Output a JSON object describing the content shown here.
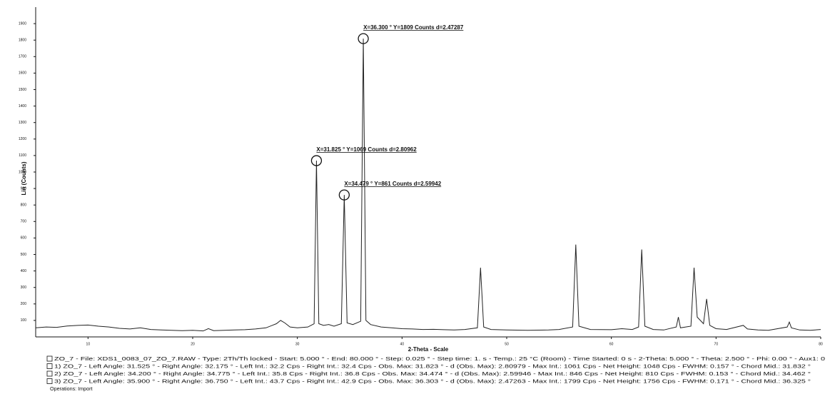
{
  "chart_data": {
    "type": "line",
    "x_label": "2-Theta - Scale",
    "y_label": "Lin (Counts)",
    "xlim": [
      5,
      80
    ],
    "ylim": [
      0,
      2000
    ],
    "xticks": [
      10,
      20,
      30,
      40,
      50,
      60,
      70,
      80
    ],
    "yticks": [
      100,
      200,
      300,
      400,
      500,
      600,
      700,
      800,
      900,
      1000,
      1100,
      1200,
      1300,
      1400,
      1500,
      1600,
      1700,
      1800,
      1900
    ],
    "color": "#222222",
    "x": [
      5,
      6,
      7,
      8,
      9,
      10,
      11,
      12,
      13,
      14,
      15,
      16,
      17,
      18,
      19,
      20,
      21,
      21.5,
      22,
      23,
      24,
      25,
      26,
      27,
      28,
      28.4,
      28.8,
      29.3,
      30,
      31,
      31.6,
      31.825,
      32.05,
      32.5,
      33,
      33.5,
      34.2,
      34.479,
      34.75,
      35.3,
      36.05,
      36.3,
      36.55,
      37,
      38,
      39,
      40,
      41,
      42,
      43,
      44,
      45,
      46,
      47.2,
      47.5,
      47.8,
      48.5,
      50,
      52,
      54,
      55,
      56.3,
      56.6,
      56.9,
      58,
      60,
      61,
      62,
      62.6,
      62.9,
      63.2,
      64,
      65,
      66.2,
      66.4,
      66.6,
      67.6,
      67.9,
      68.2,
      68.8,
      69.1,
      69.4,
      70,
      71,
      72.6,
      73,
      74,
      75,
      76.8,
      77,
      77.2,
      78,
      79,
      80
    ],
    "values": [
      55,
      60,
      58,
      66,
      70,
      72,
      65,
      60,
      52,
      48,
      55,
      45,
      42,
      40,
      38,
      40,
      36,
      50,
      38,
      40,
      42,
      44,
      48,
      55,
      80,
      100,
      85,
      60,
      55,
      60,
      80,
      1069,
      80,
      70,
      75,
      65,
      80,
      861,
      85,
      75,
      95,
      1809,
      100,
      75,
      60,
      55,
      50,
      48,
      45,
      46,
      44,
      42,
      45,
      55,
      420,
      60,
      45,
      42,
      40,
      42,
      45,
      60,
      560,
      65,
      45,
      44,
      50,
      45,
      60,
      530,
      65,
      45,
      42,
      60,
      120,
      55,
      65,
      420,
      120,
      80,
      230,
      70,
      50,
      45,
      70,
      48,
      42,
      40,
      60,
      90,
      55,
      42,
      40,
      45
    ],
    "annotations": [
      {
        "text": "X=36.300 ° Y=1809 Counts d=2.47287",
        "x": 36.3,
        "y": 1809
      },
      {
        "text": "X=31.825 ° Y=1069 Counts d=2.80962",
        "x": 31.825,
        "y": 1069
      },
      {
        "text": "X=34.479 ° Y=861 Counts d=2.59942",
        "x": 34.479,
        "y": 861
      }
    ],
    "footer": [
      "ZO_7 - File: XDS1_0083_07_ZO_7.RAW - Type: 2Th/Th locked - Start: 5.000 ° - End: 80.000 ° - Step: 0.025 ° - Step time: 1. s - Temp.: 25 °C (Room) - Time Started: 0 s - 2-Theta: 5.000 ° - Theta: 2.500 ° - Phi: 0.00 ° - Aux1: 0",
      "1) ZO_7 - Left Angle: 31.525 ° - Right Angle: 32.175 ° - Left Int.: 32.2 Cps - Right Int.: 32.4 Cps - Obs. Max: 31.823 ° - d (Obs. Max): 2.80979 - Max Int.: 1061 Cps - Net Height: 1048 Cps - FWHM: 0.157 ° - Chord Mid.: 31.832 °",
      "2) ZO_7 - Left Angle: 34.200 ° - Right Angle: 34.775 ° - Left Int.: 35.8 Cps - Right Int.: 36.8 Cps - Obs. Max: 34.474 ° - d (Obs. Max): 2.59946 - Max Int.: 846 Cps - Net Height: 810 Cps - FWHM: 0.153 ° - Chord Mid.: 34.462 °",
      "3) ZO_7 - Left Angle: 35.900 ° - Right Angle: 36.750 ° - Left Int.: 43.7 Cps - Right Int.: 42.9 Cps - Obs. Max: 36.303 ° - d (Obs. Max): 2.47263 - Max Int.: 1799 Cps - Net Height: 1756 Cps - FWHM: 0.171 ° - Chord Mid.: 36.325 °",
      "Operations: Import"
    ]
  }
}
